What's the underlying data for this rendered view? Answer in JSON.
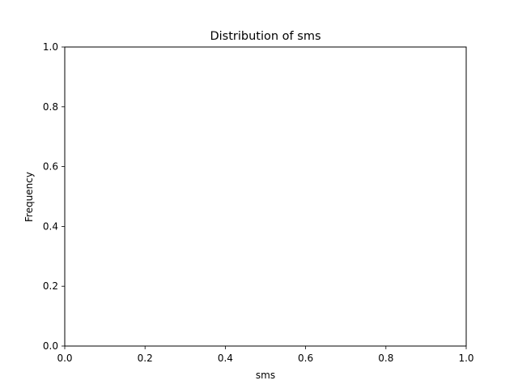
{
  "chart_data": {
    "type": "bar",
    "title": "Distribution of sms",
    "xlabel": "sms",
    "ylabel": "Frequency",
    "xlim": [
      0.0,
      1.0
    ],
    "ylim": [
      0.0,
      1.0
    ],
    "x_ticks": [
      "0.0",
      "0.2",
      "0.4",
      "0.6",
      "0.8",
      "1.0"
    ],
    "y_ticks": [
      "0.0",
      "0.2",
      "0.4",
      "0.6",
      "0.8",
      "1.0"
    ],
    "values": [],
    "grid": false,
    "legend": false
  }
}
